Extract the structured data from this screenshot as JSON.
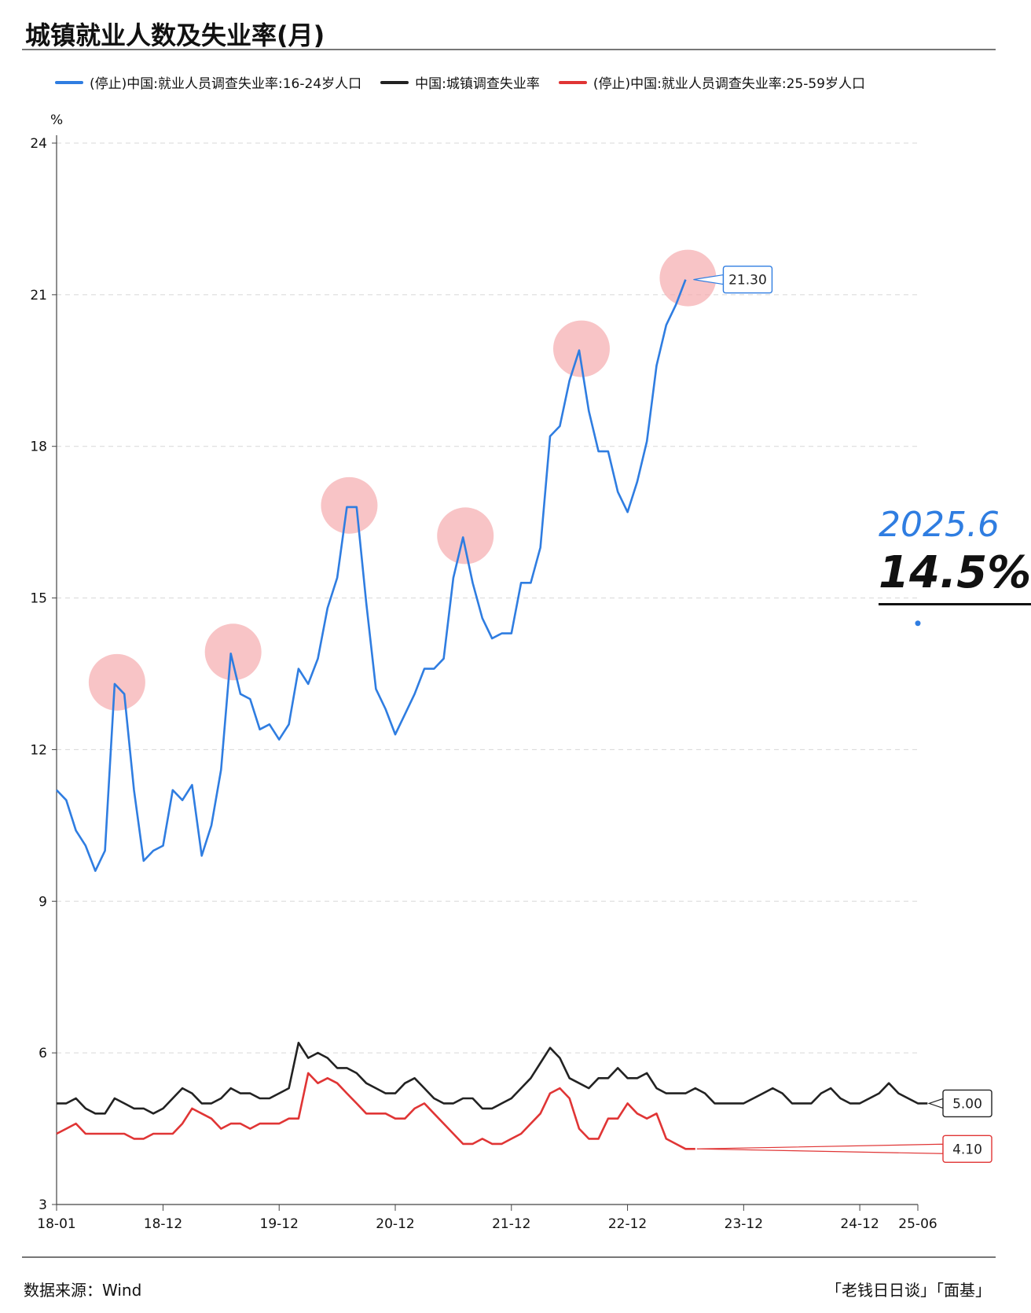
{
  "title": "城镇就业人数及失业率(月)",
  "source": "数据来源：Wind",
  "brand": "「老钱日日谈」「面基」",
  "callout": {
    "date": "2025.6",
    "value": "14.5%"
  },
  "colors": {
    "blue": "#2f7de1",
    "black": "#222222",
    "red": "#e03535",
    "highlight": "#f5a5a8"
  },
  "chart_data": {
    "type": "line",
    "ylabel": "%",
    "ylim": [
      3,
      24
    ],
    "yticks": [
      3,
      6,
      9,
      12,
      15,
      18,
      21,
      24
    ],
    "grid": true,
    "legend_position": "top",
    "xticks": [
      {
        "i": 0,
        "label": "18-01"
      },
      {
        "i": 11,
        "label": "18-12"
      },
      {
        "i": 23,
        "label": "19-12"
      },
      {
        "i": 35,
        "label": "20-12"
      },
      {
        "i": 47,
        "label": "21-12"
      },
      {
        "i": 59,
        "label": "22-12"
      },
      {
        "i": 71,
        "label": "23-12"
      },
      {
        "i": 83,
        "label": "24-12"
      },
      {
        "i": 89,
        "label": "25-06"
      }
    ],
    "series": [
      {
        "name": "(停止)中国:就业人员调查失业率:16-24岁人口",
        "color": "#2f7de1",
        "start_index": 0,
        "values": [
          11.2,
          11.0,
          10.4,
          10.1,
          9.6,
          10.0,
          13.3,
          13.1,
          11.2,
          9.8,
          10.0,
          10.1,
          11.2,
          11.0,
          11.3,
          9.9,
          10.5,
          11.6,
          13.9,
          13.1,
          13.0,
          12.4,
          12.5,
          12.2,
          12.5,
          13.6,
          13.3,
          13.8,
          14.8,
          15.4,
          16.8,
          16.8,
          14.9,
          13.2,
          12.8,
          12.3,
          12.7,
          13.1,
          13.6,
          13.6,
          13.8,
          15.4,
          16.2,
          15.3,
          14.6,
          14.2,
          14.3,
          14.3,
          15.3,
          15.3,
          16.0,
          18.2,
          18.4,
          19.3,
          19.9,
          18.7,
          17.9,
          17.9,
          17.1,
          16.7,
          17.3,
          18.1,
          19.6,
          20.4,
          20.8,
          21.3
        ],
        "end_label": "21.30"
      },
      {
        "name": "中国:城镇调查失业率",
        "color": "#222222",
        "start_index": 0,
        "values": [
          5.0,
          5.0,
          5.1,
          4.9,
          4.8,
          4.8,
          5.1,
          5.0,
          4.9,
          4.9,
          4.8,
          4.9,
          5.1,
          5.3,
          5.2,
          5.0,
          5.0,
          5.1,
          5.3,
          5.2,
          5.2,
          5.1,
          5.1,
          5.2,
          5.3,
          6.2,
          5.9,
          6.0,
          5.9,
          5.7,
          5.7,
          5.6,
          5.4,
          5.3,
          5.2,
          5.2,
          5.4,
          5.5,
          5.3,
          5.1,
          5.0,
          5.0,
          5.1,
          5.1,
          4.9,
          4.9,
          5.0,
          5.1,
          5.3,
          5.5,
          5.8,
          6.1,
          5.9,
          5.5,
          5.4,
          5.3,
          5.5,
          5.5,
          5.7,
          5.5,
          5.5,
          5.6,
          5.3,
          5.2,
          5.2,
          5.2,
          5.3,
          5.2,
          5.0,
          5.0,
          5.0,
          5.0,
          5.1,
          5.2,
          5.3,
          5.2,
          5.0,
          5.0,
          5.0,
          5.2,
          5.3,
          5.1,
          5.0,
          5.0,
          5.1,
          5.2,
          5.4,
          5.2,
          5.1,
          5.0,
          5.0
        ],
        "end_label": "5.00"
      },
      {
        "name": "(停止)中国:就业人员调查失业率:25-59岁人口",
        "color": "#e03535",
        "start_index": 0,
        "values": [
          4.4,
          4.5,
          4.6,
          4.4,
          4.4,
          4.4,
          4.4,
          4.4,
          4.3,
          4.3,
          4.4,
          4.4,
          4.4,
          4.6,
          4.9,
          4.8,
          4.7,
          4.5,
          4.6,
          4.6,
          4.5,
          4.6,
          4.6,
          4.6,
          4.7,
          4.7,
          5.6,
          5.4,
          5.5,
          5.4,
          5.2,
          5.0,
          4.8,
          4.8,
          4.8,
          4.7,
          4.7,
          4.9,
          5.0,
          4.8,
          4.6,
          4.4,
          4.2,
          4.2,
          4.3,
          4.2,
          4.2,
          4.3,
          4.4,
          4.6,
          4.8,
          5.2,
          5.3,
          5.1,
          4.5,
          4.3,
          4.3,
          4.7,
          4.7,
          5.0,
          4.8,
          4.7,
          4.8,
          4.3,
          4.2,
          4.1,
          4.1
        ],
        "end_label": "4.10"
      }
    ],
    "highlighted_peaks": [
      {
        "series": 0,
        "i": 6,
        "value": 13.3
      },
      {
        "series": 0,
        "i": 18,
        "value": 13.9
      },
      {
        "series": 0,
        "i": 30,
        "value": 16.8
      },
      {
        "series": 0,
        "i": 42,
        "value": 16.2
      },
      {
        "series": 0,
        "i": 54,
        "value": 19.9
      },
      {
        "series": 0,
        "i": 65,
        "value": 21.3
      }
    ],
    "extra_point": {
      "i": 89,
      "value": 14.5
    }
  }
}
